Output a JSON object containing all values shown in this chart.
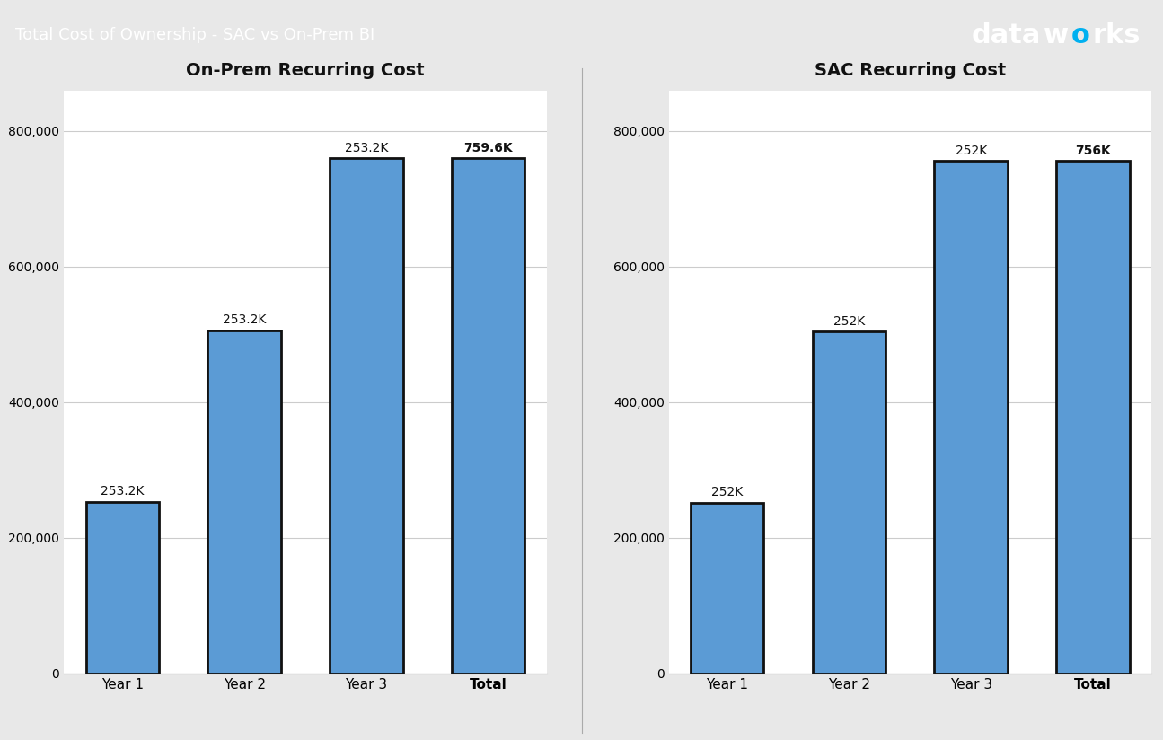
{
  "title": "Total Cost of Ownership - SAC vs On-Prem BI",
  "title_bg_color": "#3d3d3d",
  "title_text_color": "#ffffff",
  "chart_bg_color": "#e8e8e8",
  "plot_bg_color": "#ffffff",
  "bar_color": "#5B9BD5",
  "bar_edge_color": "#111111",
  "left_chart": {
    "title": "On-Prem Recurring Cost",
    "categories": [
      "Year 1",
      "Year 2",
      "Year 3",
      "Total"
    ],
    "values": [
      253200,
      253200,
      253200,
      759600
    ],
    "labels": [
      "253.2K",
      "253.2K",
      "253.2K",
      "759.6K"
    ],
    "total_bold": true
  },
  "right_chart": {
    "title": "SAC Recurring Cost",
    "categories": [
      "Year 1",
      "Year 2",
      "Year 3",
      "Total"
    ],
    "values": [
      252000,
      252000,
      252000,
      756000
    ],
    "labels": [
      "252K",
      "252K",
      "252K",
      "756K"
    ],
    "total_bold": true
  },
  "ylim": [
    0,
    860000
  ],
  "yticks": [
    0,
    200000,
    400000,
    600000,
    800000
  ],
  "dataworks_color": "#ffffff",
  "dataworks_dot_color": "#00aaff"
}
